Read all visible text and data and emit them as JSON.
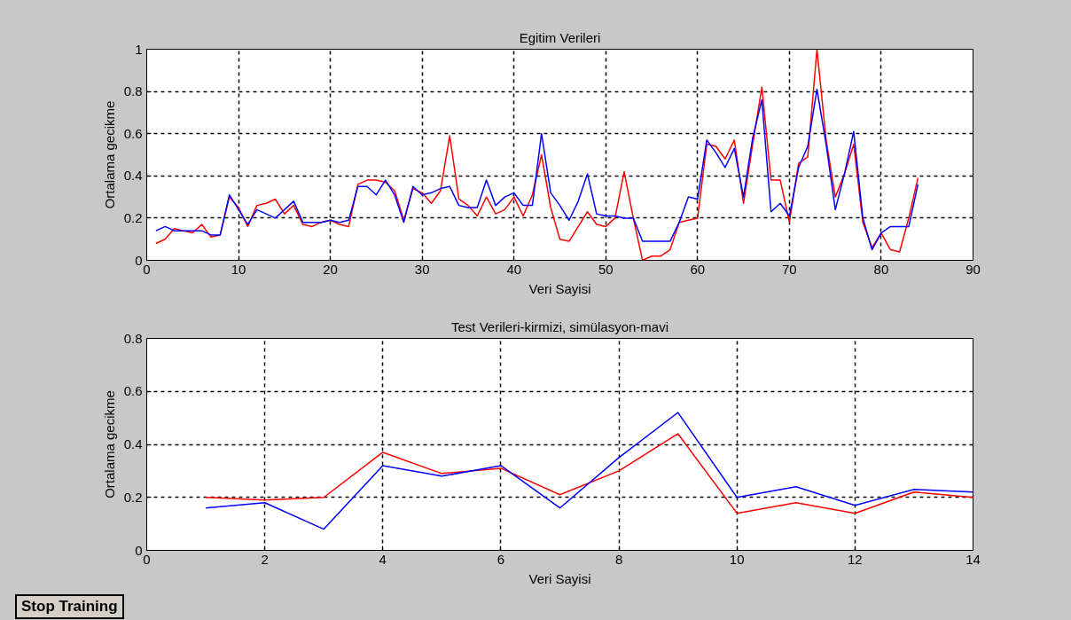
{
  "chart_data": [
    {
      "type": "line",
      "title": "Egitim Verileri",
      "xlabel": "Veri Sayisi",
      "ylabel": "Ortalama gecikme",
      "xlim": [
        0,
        90
      ],
      "xticks": [
        0,
        10,
        20,
        30,
        40,
        50,
        60,
        70,
        80,
        90
      ],
      "ylim": [
        0,
        1
      ],
      "yticks": [
        0,
        0.2,
        0.4,
        0.6,
        0.8,
        1
      ],
      "grid": true,
      "x": [
        1,
        2,
        3,
        4,
        5,
        6,
        7,
        8,
        9,
        10,
        11,
        12,
        13,
        14,
        15,
        16,
        17,
        18,
        19,
        20,
        21,
        22,
        23,
        24,
        25,
        26,
        27,
        28,
        29,
        30,
        31,
        32,
        33,
        34,
        35,
        36,
        37,
        38,
        39,
        40,
        41,
        42,
        43,
        44,
        45,
        46,
        47,
        48,
        49,
        50,
        51,
        52,
        53,
        54,
        55,
        56,
        57,
        58,
        59,
        60,
        61,
        62,
        63,
        64,
        65,
        66,
        67,
        68,
        69,
        70,
        71,
        72,
        73,
        74,
        75,
        76,
        77,
        78,
        79,
        80,
        81,
        82,
        83,
        84
      ],
      "series": [
        {
          "color": "#ff0000",
          "values": [
            0.08,
            0.1,
            0.15,
            0.14,
            0.13,
            0.17,
            0.11,
            0.12,
            0.3,
            0.25,
            0.16,
            0.26,
            0.27,
            0.29,
            0.22,
            0.26,
            0.17,
            0.16,
            0.18,
            0.19,
            0.17,
            0.16,
            0.36,
            0.38,
            0.38,
            0.37,
            0.33,
            0.19,
            0.34,
            0.32,
            0.27,
            0.33,
            0.59,
            0.29,
            0.26,
            0.21,
            0.3,
            0.22,
            0.24,
            0.3,
            0.21,
            0.31,
            0.5,
            0.25,
            0.1,
            0.09,
            0.16,
            0.23,
            0.17,
            0.16,
            0.2,
            0.42,
            0.2,
            0.0,
            0.02,
            0.02,
            0.05,
            0.18,
            0.19,
            0.2,
            0.55,
            0.54,
            0.48,
            0.57,
            0.27,
            0.55,
            0.82,
            0.38,
            0.38,
            0.18,
            0.46,
            0.49,
            1.0,
            0.57,
            0.3,
            0.41,
            0.55,
            0.18,
            0.06,
            0.13,
            0.05,
            0.04,
            0.2,
            0.39
          ]
        },
        {
          "color": "#0000ff",
          "values": [
            0.14,
            0.16,
            0.14,
            0.14,
            0.14,
            0.14,
            0.12,
            0.12,
            0.31,
            0.24,
            0.17,
            0.24,
            0.22,
            0.2,
            0.24,
            0.28,
            0.18,
            0.18,
            0.18,
            0.19,
            0.18,
            0.19,
            0.35,
            0.35,
            0.31,
            0.38,
            0.31,
            0.18,
            0.35,
            0.31,
            0.32,
            0.34,
            0.35,
            0.26,
            0.25,
            0.25,
            0.38,
            0.26,
            0.3,
            0.32,
            0.26,
            0.26,
            0.6,
            0.32,
            0.26,
            0.19,
            0.28,
            0.41,
            0.22,
            0.21,
            0.21,
            0.2,
            0.2,
            0.09,
            0.09,
            0.09,
            0.09,
            0.18,
            0.3,
            0.29,
            0.57,
            0.51,
            0.44,
            0.53,
            0.3,
            0.58,
            0.76,
            0.23,
            0.27,
            0.21,
            0.44,
            0.54,
            0.81,
            0.55,
            0.24,
            0.41,
            0.61,
            0.2,
            0.05,
            0.13,
            0.16,
            0.16,
            0.16,
            0.36
          ]
        }
      ]
    },
    {
      "type": "line",
      "title": "Test Verileri-kirmizi, simülasyon-mavi",
      "xlabel": "Veri Sayisi",
      "ylabel": "Ortalama gecikme",
      "xlim": [
        0,
        14
      ],
      "xticks": [
        0,
        2,
        4,
        6,
        8,
        10,
        12,
        14
      ],
      "ylim": [
        0,
        0.8
      ],
      "yticks": [
        0,
        0.2,
        0.4,
        0.6,
        0.8
      ],
      "grid": true,
      "annotations": [
        "Stop Training"
      ],
      "x": [
        1,
        2,
        3,
        4,
        5,
        6,
        7,
        8,
        9,
        10,
        11,
        12,
        13,
        14
      ],
      "series": [
        {
          "color": "#ff0000",
          "values": [
            0.2,
            0.19,
            0.2,
            0.37,
            0.29,
            0.31,
            0.21,
            0.3,
            0.44,
            0.14,
            0.18,
            0.14,
            0.22,
            0.2
          ]
        },
        {
          "color": "#0000ff",
          "values": [
            0.16,
            0.18,
            0.08,
            0.32,
            0.28,
            0.32,
            0.16,
            0.35,
            0.52,
            0.2,
            0.24,
            0.17,
            0.23,
            0.22
          ]
        }
      ]
    }
  ]
}
